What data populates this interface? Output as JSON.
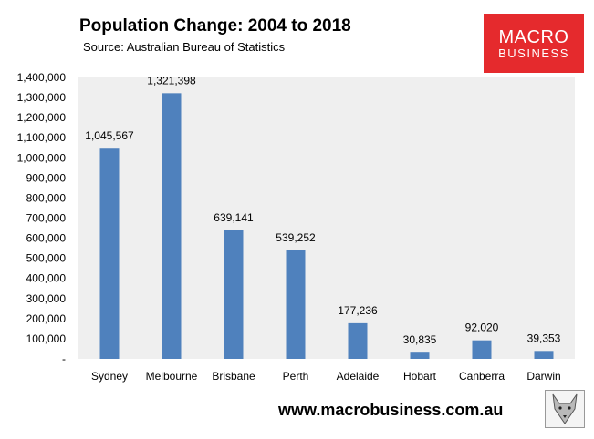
{
  "chart_data": {
    "type": "bar",
    "title": "Population Change: 2004 to 2018",
    "subtitle": "Source: Australian Bureau of Statistics",
    "categories": [
      "Sydney",
      "Melbourne",
      "Brisbane",
      "Perth",
      "Adelaide",
      "Hobart",
      "Canberra",
      "Darwin"
    ],
    "values": [
      1045567,
      1321398,
      639141,
      539252,
      177236,
      30835,
      92020,
      39353
    ],
    "data_labels": [
      "1,045,567",
      "1,321,398",
      "639,141",
      "539,252",
      "177,236",
      "30,835",
      "92,020",
      "39,353"
    ],
    "y_ticks": [
      0,
      100000,
      200000,
      300000,
      400000,
      500000,
      600000,
      700000,
      800000,
      900000,
      1000000,
      1100000,
      1200000,
      1300000,
      1400000
    ],
    "y_tick_labels": [
      "-",
      "100,000",
      "200,000",
      "300,000",
      "400,000",
      "500,000",
      "600,000",
      "700,000",
      "800,000",
      "900,000",
      "1,000,000",
      "1,100,000",
      "1,200,000",
      "1,300,000",
      "1,400,000"
    ],
    "ylim": [
      0,
      1400000
    ],
    "xlabel": "",
    "ylabel": "",
    "grid": false,
    "bar_color": "#4f81bd",
    "plot_background": "#efefef"
  },
  "logo": {
    "line1": "MACRO",
    "line2": "BUSINESS",
    "color": "#e52a2d"
  },
  "footer": {
    "url": "www.macrobusiness.com.au"
  },
  "icons": {
    "mascot": "wolf-icon"
  }
}
